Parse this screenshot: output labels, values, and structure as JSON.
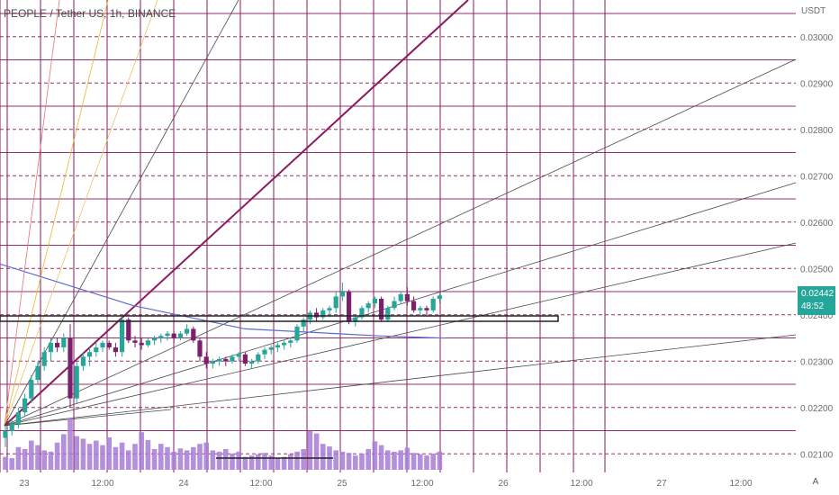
{
  "header": {
    "symbol_title": "PEOPLE / Tether US, 1h, BINANCE"
  },
  "price_axis": {
    "currency": "USDT"
  },
  "current_price": {
    "value": "0.02442",
    "countdown": "48:52",
    "color": "#26a69a"
  },
  "auto_button": {
    "label": "A"
  },
  "colors": {
    "up": "#26a69a",
    "down": "#7b1f6f",
    "grid": "#8b1a5e",
    "volume": "#a77bd6",
    "ma": "#5b6bd6"
  },
  "chart_data": {
    "type": "candlestick",
    "y_ticks": [
      "0.02100",
      "0.02200",
      "0.02300",
      "0.02400",
      "0.02500",
      "0.02600",
      "0.02700",
      "0.02800",
      "0.02900",
      "0.03000"
    ],
    "x_ticks": [
      "23",
      "12:00",
      "24",
      "12:00",
      "25",
      "12:00",
      "26",
      "12:00",
      "27",
      "12:00"
    ],
    "ylim": [
      0.0207,
      0.0315
    ],
    "ohlc": [
      [
        0.02135,
        0.0216,
        0.02115,
        0.0215
      ],
      [
        0.0215,
        0.02175,
        0.0214,
        0.02165
      ],
      [
        0.02165,
        0.022,
        0.02155,
        0.0219
      ],
      [
        0.0219,
        0.0223,
        0.0218,
        0.0222
      ],
      [
        0.0222,
        0.0227,
        0.0221,
        0.0226
      ],
      [
        0.0226,
        0.023,
        0.0225,
        0.0229
      ],
      [
        0.0229,
        0.0233,
        0.0228,
        0.0232
      ],
      [
        0.0232,
        0.0235,
        0.023,
        0.0234
      ],
      [
        0.0234,
        0.0235,
        0.0232,
        0.0233
      ],
      [
        0.0233,
        0.0236,
        0.0232,
        0.0235
      ],
      [
        0.0235,
        0.0238,
        0.022,
        0.0222
      ],
      [
        0.0222,
        0.023,
        0.0221,
        0.0229
      ],
      [
        0.0229,
        0.0232,
        0.0228,
        0.0231
      ],
      [
        0.0231,
        0.0233,
        0.0229,
        0.0232
      ],
      [
        0.0232,
        0.0234,
        0.0231,
        0.0233
      ],
      [
        0.0233,
        0.02345,
        0.0232,
        0.0234
      ],
      [
        0.0234,
        0.02345,
        0.02325,
        0.0233
      ],
      [
        0.0233,
        0.0234,
        0.0231,
        0.0232
      ],
      [
        0.0232,
        0.02395,
        0.0231,
        0.0239
      ],
      [
        0.0239,
        0.02395,
        0.0234,
        0.02345
      ],
      [
        0.02345,
        0.02355,
        0.0233,
        0.0234
      ],
      [
        0.0234,
        0.0235,
        0.02325,
        0.02335
      ],
      [
        0.02335,
        0.0235,
        0.0233,
        0.02345
      ],
      [
        0.02345,
        0.02355,
        0.02335,
        0.0235
      ],
      [
        0.0235,
        0.0236,
        0.0234,
        0.02355
      ],
      [
        0.02355,
        0.02365,
        0.02345,
        0.0236
      ],
      [
        0.0236,
        0.02365,
        0.0234,
        0.0235
      ],
      [
        0.0235,
        0.02365,
        0.02345,
        0.0236
      ],
      [
        0.0236,
        0.0238,
        0.02355,
        0.0237
      ],
      [
        0.0237,
        0.02375,
        0.0234,
        0.02345
      ],
      [
        0.02345,
        0.0235,
        0.023,
        0.0231
      ],
      [
        0.0231,
        0.0232,
        0.02285,
        0.02295
      ],
      [
        0.02295,
        0.02305,
        0.02285,
        0.023
      ],
      [
        0.023,
        0.0231,
        0.0229,
        0.02305
      ],
      [
        0.02305,
        0.0231,
        0.0229,
        0.023
      ],
      [
        0.023,
        0.02315,
        0.02295,
        0.0231
      ],
      [
        0.0231,
        0.0232,
        0.023,
        0.02315
      ],
      [
        0.02315,
        0.0232,
        0.0229,
        0.02295
      ],
      [
        0.02295,
        0.02305,
        0.02285,
        0.023
      ],
      [
        0.023,
        0.0232,
        0.02295,
        0.02315
      ],
      [
        0.02315,
        0.0233,
        0.02305,
        0.02325
      ],
      [
        0.02325,
        0.02335,
        0.02315,
        0.0233
      ],
      [
        0.0233,
        0.0234,
        0.0232,
        0.02335
      ],
      [
        0.02335,
        0.02345,
        0.02325,
        0.0234
      ],
      [
        0.0234,
        0.0235,
        0.0233,
        0.02345
      ],
      [
        0.02345,
        0.0238,
        0.0234,
        0.02375
      ],
      [
        0.02375,
        0.02395,
        0.02365,
        0.0239
      ],
      [
        0.0239,
        0.0241,
        0.0238,
        0.02405
      ],
      [
        0.02405,
        0.02415,
        0.02385,
        0.02395
      ],
      [
        0.02395,
        0.02415,
        0.0239,
        0.0241
      ],
      [
        0.0241,
        0.0242,
        0.02395,
        0.02415
      ],
      [
        0.02415,
        0.0245,
        0.02405,
        0.0244
      ],
      [
        0.0244,
        0.0247,
        0.0243,
        0.0245
      ],
      [
        0.0245,
        0.02455,
        0.0238,
        0.02385
      ],
      [
        0.02385,
        0.024,
        0.02375,
        0.02395
      ],
      [
        0.02395,
        0.0242,
        0.0239,
        0.02415
      ],
      [
        0.02415,
        0.0243,
        0.02405,
        0.02425
      ],
      [
        0.02425,
        0.0244,
        0.02415,
        0.02435
      ],
      [
        0.02435,
        0.0244,
        0.02385,
        0.0239
      ],
      [
        0.0239,
        0.0242,
        0.02385,
        0.02415
      ],
      [
        0.02415,
        0.0244,
        0.0241,
        0.0243
      ],
      [
        0.0243,
        0.0245,
        0.02425,
        0.02445
      ],
      [
        0.02445,
        0.0246,
        0.0242,
        0.0243
      ],
      [
        0.0243,
        0.0244,
        0.02405,
        0.0241
      ],
      [
        0.0241,
        0.0242,
        0.024,
        0.02415
      ],
      [
        0.02415,
        0.0242,
        0.024,
        0.0241
      ],
      [
        0.0241,
        0.0244,
        0.02405,
        0.02435
      ],
      [
        0.02435,
        0.02445,
        0.02425,
        0.02442
      ]
    ],
    "volume": [
      20,
      18,
      35,
      32,
      45,
      38,
      30,
      28,
      42,
      55,
      80,
      52,
      48,
      40,
      45,
      38,
      50,
      35,
      42,
      30,
      40,
      58,
      46,
      32,
      40,
      35,
      28,
      33,
      30,
      35,
      40,
      42,
      30,
      28,
      32,
      25,
      28,
      20,
      22,
      24,
      26,
      22,
      18,
      20,
      24,
      28,
      32,
      60,
      56,
      40,
      36,
      30,
      28,
      26,
      22,
      25,
      32,
      44,
      38,
      30,
      28,
      30,
      34,
      26,
      24,
      22,
      25,
      28
    ],
    "ma_line": [
      [
        0.0,
        0.0251
      ],
      [
        0.3,
        0.0242
      ],
      [
        0.55,
        0.0237
      ],
      [
        0.85,
        0.02355
      ],
      [
        1.0,
        0.0235
      ]
    ]
  }
}
